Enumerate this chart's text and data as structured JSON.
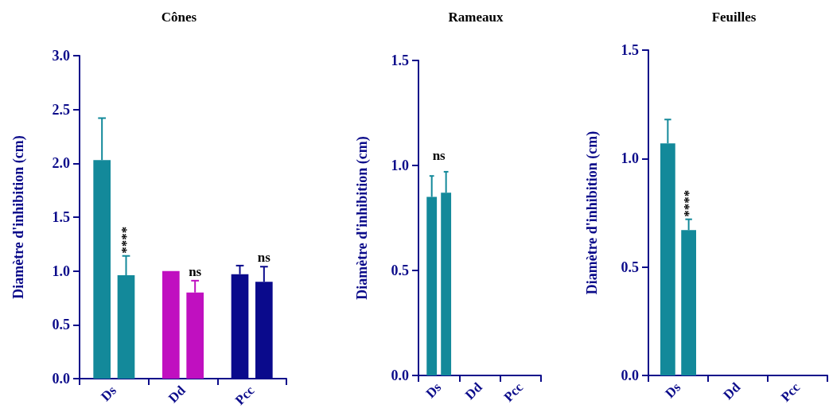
{
  "chart_data": [
    {
      "type": "bar",
      "title": "Cônes",
      "ylabel": "Diamètre d'inhibition (cm)",
      "categories": [
        "Ds",
        "Dd",
        "Pcc"
      ],
      "series": [
        {
          "colors": [
            "#13899a",
            "#c010c0",
            "#0a0a8c"
          ],
          "values": [
            2.03,
            1.0,
            0.97
          ],
          "errors": [
            0.39,
            null,
            0.08
          ]
        },
        {
          "colors": [
            "#13899a",
            "#c010c0",
            "#0a0a8c"
          ],
          "values": [
            0.96,
            0.8,
            0.9
          ],
          "errors": [
            0.18,
            0.11,
            0.14
          ]
        }
      ],
      "ylim": [
        0,
        3
      ],
      "yticks": [
        {
          "value": 0,
          "label": "0.0"
        },
        0.5,
        {
          "value": 1,
          "label": "1.0"
        },
        1.5,
        {
          "value": 2,
          "label": "2.0"
        },
        2.5,
        {
          "value": 3,
          "label": "3.0"
        }
      ],
      "grid": false,
      "annotations": [
        {
          "text": "****",
          "x": "Ds",
          "y": 1.14
        },
        {
          "text": "ns",
          "x": "Dd",
          "y": 0.91
        },
        {
          "text": "ns",
          "x": "Pcc",
          "y": 1.04
        }
      ]
    },
    {
      "type": "bar",
      "title": "Rameaux",
      "ylabel": "Diamètre d'inhibition (cm)",
      "categories": [
        "Ds",
        "Dd",
        "Pcc"
      ],
      "series": [
        {
          "colors": [
            "#13899a",
            "#c010c0",
            "#0a0a8c"
          ],
          "values": [
            0.85,
            0,
            0
          ],
          "errors": [
            0.1,
            null,
            null
          ]
        },
        {
          "colors": [
            "#13899a",
            "#c010c0",
            "#0a0a8c"
          ],
          "values": [
            0.87,
            0,
            0
          ],
          "errors": [
            0.1,
            null,
            null
          ]
        }
      ],
      "ylim": [
        0,
        1.5
      ],
      "yticks": [
        {
          "value": 0,
          "label": "0.0"
        },
        0.5,
        {
          "value": 1,
          "label": "1.0"
        },
        1.5
      ],
      "grid": false,
      "annotations": [
        "ns"
      ]
    },
    {
      "type": "bar",
      "title": "Feuilles",
      "ylabel": "Diamètre d'inhibition (cm)",
      "categories": [
        "Ds",
        "Dd",
        "Pcc"
      ],
      "series": [
        {
          "colors": [
            "#13899a",
            "#c010c0",
            "#0a0a8c"
          ],
          "values": [
            1.07,
            0,
            0
          ],
          "errors": [
            0.11,
            null,
            null
          ]
        },
        {
          "colors": [
            "#13899a",
            "#c010c0",
            "#0a0a8c"
          ],
          "values": [
            0.67,
            0,
            0
          ],
          "errors": [
            0.05,
            null,
            null
          ]
        }
      ],
      "ylim": [
        0,
        1.5
      ],
      "yticks": [
        {
          "value": 0,
          "label": "0.0"
        },
        0.5,
        {
          "value": 1,
          "label": "1.0"
        },
        1.5
      ],
      "grid": false,
      "annotations": [
        {
          "text": "****",
          "x": "Ds",
          "y": 0.72
        }
      ]
    }
  ]
}
